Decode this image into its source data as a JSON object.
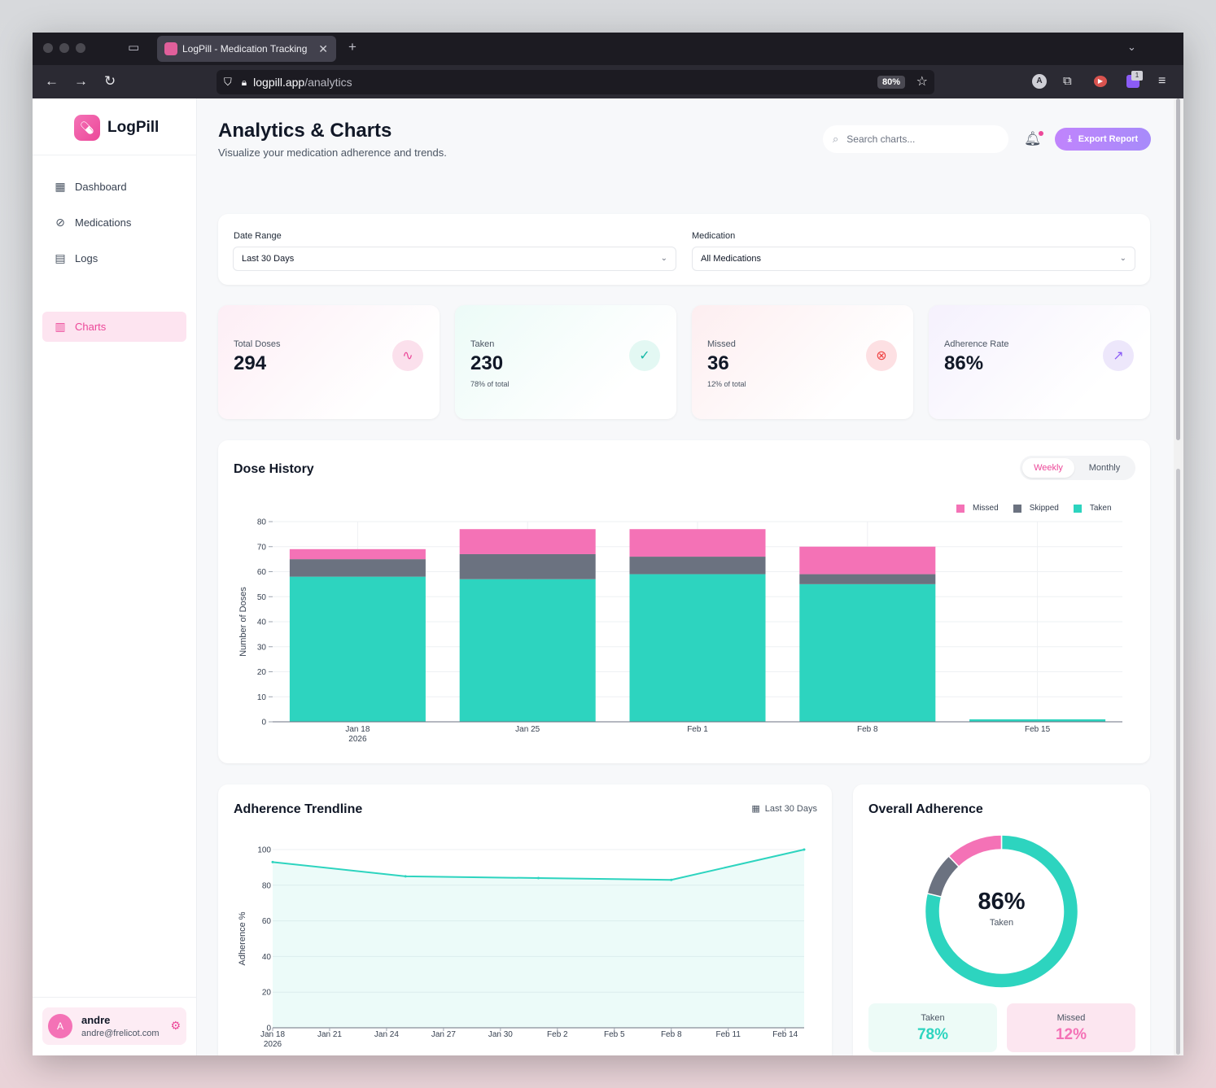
{
  "browser": {
    "tab_title": "LogPill - Medication Tracking",
    "url_host": "logpill.app",
    "url_path": "/analytics",
    "zoom": "80%",
    "ext_badge": "1"
  },
  "app": {
    "name": "LogPill",
    "nav": [
      {
        "label": "Dashboard",
        "icon": "calendar-icon"
      },
      {
        "label": "Medications",
        "icon": "pill-icon"
      },
      {
        "label": "Logs",
        "icon": "document-icon"
      },
      {
        "label": "Charts",
        "icon": "bar-chart-icon",
        "active": true
      }
    ],
    "user": {
      "initial": "A",
      "name": "andre",
      "email": "andre@frelicot.com"
    }
  },
  "header": {
    "title": "Analytics & Charts",
    "subtitle": "Visualize your medication adherence and trends.",
    "search_placeholder": "Search charts...",
    "export_label": "Export Report"
  },
  "filters": {
    "date_range_label": "Date Range",
    "date_range_value": "Last 30 Days",
    "medication_label": "Medication",
    "medication_value": "All Medications"
  },
  "stats": {
    "total": {
      "label": "Total Doses",
      "value": "294"
    },
    "taken": {
      "label": "Taken",
      "value": "230",
      "sub": "78% of total"
    },
    "missed": {
      "label": "Missed",
      "value": "36",
      "sub": "12% of total"
    },
    "adherence": {
      "label": "Adherence Rate",
      "value": "86%"
    }
  },
  "dose_history": {
    "title": "Dose History",
    "toggle_weekly": "Weekly",
    "toggle_monthly": "Monthly"
  },
  "trendline": {
    "title": "Adherence Trendline",
    "range": "Last 30 Days"
  },
  "overall": {
    "title": "Overall Adherence",
    "center_value": "86%",
    "center_label": "Taken",
    "taken_label": "Taken",
    "taken_value": "78%",
    "missed_label": "Missed",
    "missed_value": "12%"
  },
  "colors": {
    "taken": "#2dd4bf",
    "skipped": "#6b7280",
    "missed": "#f472b6",
    "accent": "#ec4899"
  },
  "chart_data": [
    {
      "type": "bar",
      "stacked": true,
      "title": "Dose History",
      "ylabel": "Number of Doses",
      "ylim": [
        0,
        80
      ],
      "yticks": [
        0,
        10,
        20,
        30,
        40,
        50,
        60,
        70,
        80
      ],
      "categories": [
        "Jan 18",
        "Jan 25",
        "Feb 1",
        "Feb 8",
        "Feb 15"
      ],
      "year_label": "2026",
      "legend_position": "top-right",
      "grid": true,
      "series": [
        {
          "name": "Taken",
          "values": [
            58,
            57,
            59,
            55,
            1
          ]
        },
        {
          "name": "Skipped",
          "values": [
            7,
            10,
            7,
            4,
            0
          ]
        },
        {
          "name": "Missed",
          "values": [
            4,
            10,
            11,
            11,
            0
          ]
        }
      ]
    },
    {
      "type": "area",
      "title": "Adherence Trendline",
      "ylabel": "Adherence %",
      "ylim": [
        0,
        100
      ],
      "yticks": [
        0,
        20,
        40,
        60,
        80,
        100
      ],
      "xticks": [
        "Jan 18",
        "Jan 21",
        "Jan 24",
        "Jan 27",
        "Jan 30",
        "Feb 2",
        "Feb 5",
        "Feb 8",
        "Feb 11",
        "Feb 14"
      ],
      "year_label": "2026",
      "x": [
        "Jan 18",
        "Jan 25",
        "Feb 1",
        "Feb 8",
        "Feb 15"
      ],
      "y": [
        93,
        85,
        84,
        83,
        100
      ]
    },
    {
      "type": "pie",
      "title": "Overall Adherence",
      "labels": [
        "Taken",
        "Skipped",
        "Missed"
      ],
      "values": [
        78,
        9,
        12
      ]
    }
  ]
}
